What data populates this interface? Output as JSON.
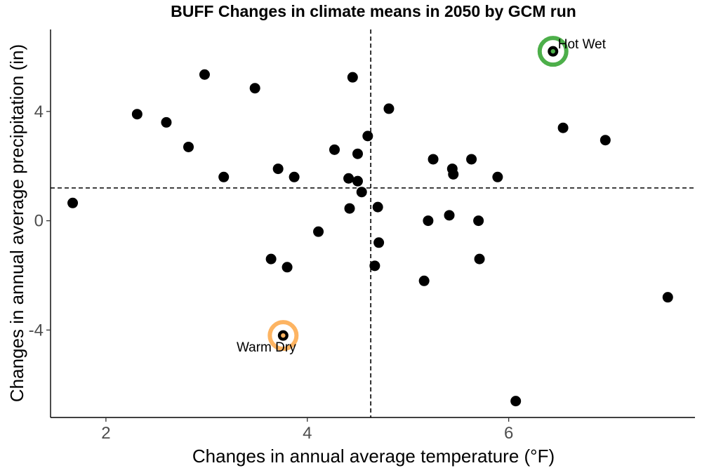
{
  "chart_data": {
    "type": "scatter",
    "title": "BUFF Changes in climate means in 2050 by GCM run",
    "xlabel": "Changes in annual average temperature (°F)",
    "ylabel": "Changes in annual average precipitation (in)",
    "xlim": [
      1.45,
      7.85
    ],
    "ylim": [
      -7.2,
      7.0
    ],
    "x_ticks": [
      2,
      4,
      6
    ],
    "y_ticks": [
      -4,
      0,
      4
    ],
    "grid": false,
    "point_color": "#000000",
    "points": [
      {
        "x": 1.67,
        "y": 0.65
      },
      {
        "x": 2.31,
        "y": 3.9
      },
      {
        "x": 2.6,
        "y": 3.6
      },
      {
        "x": 2.82,
        "y": 2.7
      },
      {
        "x": 2.98,
        "y": 5.35
      },
      {
        "x": 3.17,
        "y": 1.6
      },
      {
        "x": 3.48,
        "y": 4.85
      },
      {
        "x": 3.64,
        "y": -1.4
      },
      {
        "x": 3.71,
        "y": 1.9
      },
      {
        "x": 3.8,
        "y": -1.7
      },
      {
        "x": 3.87,
        "y": 1.6
      },
      {
        "x": 4.11,
        "y": -0.4
      },
      {
        "x": 4.27,
        "y": 2.6
      },
      {
        "x": 4.41,
        "y": 1.55
      },
      {
        "x": 4.42,
        "y": 0.45
      },
      {
        "x": 4.45,
        "y": 5.25
      },
      {
        "x": 4.5,
        "y": 2.45
      },
      {
        "x": 4.5,
        "y": 1.45
      },
      {
        "x": 4.54,
        "y": 1.05
      },
      {
        "x": 4.6,
        "y": 3.1
      },
      {
        "x": 4.67,
        "y": -1.65
      },
      {
        "x": 4.7,
        "y": 0.5
      },
      {
        "x": 4.71,
        "y": -0.8
      },
      {
        "x": 4.81,
        "y": 4.1
      },
      {
        "x": 5.16,
        "y": -2.2
      },
      {
        "x": 5.2,
        "y": 0.0
      },
      {
        "x": 5.25,
        "y": 2.25
      },
      {
        "x": 5.41,
        "y": 0.2
      },
      {
        "x": 5.44,
        "y": 1.9
      },
      {
        "x": 5.45,
        "y": 1.7
      },
      {
        "x": 5.63,
        "y": 2.25
      },
      {
        "x": 5.7,
        "y": 0.0
      },
      {
        "x": 5.71,
        "y": -1.4
      },
      {
        "x": 5.89,
        "y": 1.6
      },
      {
        "x": 6.07,
        "y": -6.6
      },
      {
        "x": 6.44,
        "y": 6.2
      },
      {
        "x": 6.54,
        "y": 3.4
      },
      {
        "x": 6.96,
        "y": 2.95
      },
      {
        "x": 7.58,
        "y": -2.8
      },
      {
        "x": 3.76,
        "y": -4.2
      }
    ],
    "reference_lines": {
      "x": 4.63,
      "y": 1.2,
      "style": "dashed"
    },
    "highlights": [
      {
        "label": "Hot Wet",
        "x": 6.44,
        "y": 6.2,
        "ring_color": "#4daf4a",
        "dot_color": "#4daf4a"
      },
      {
        "label": "Warm Dry",
        "x": 3.76,
        "y": -4.2,
        "ring_color": "#fdb462",
        "dot_color": "#fdb462"
      }
    ]
  }
}
